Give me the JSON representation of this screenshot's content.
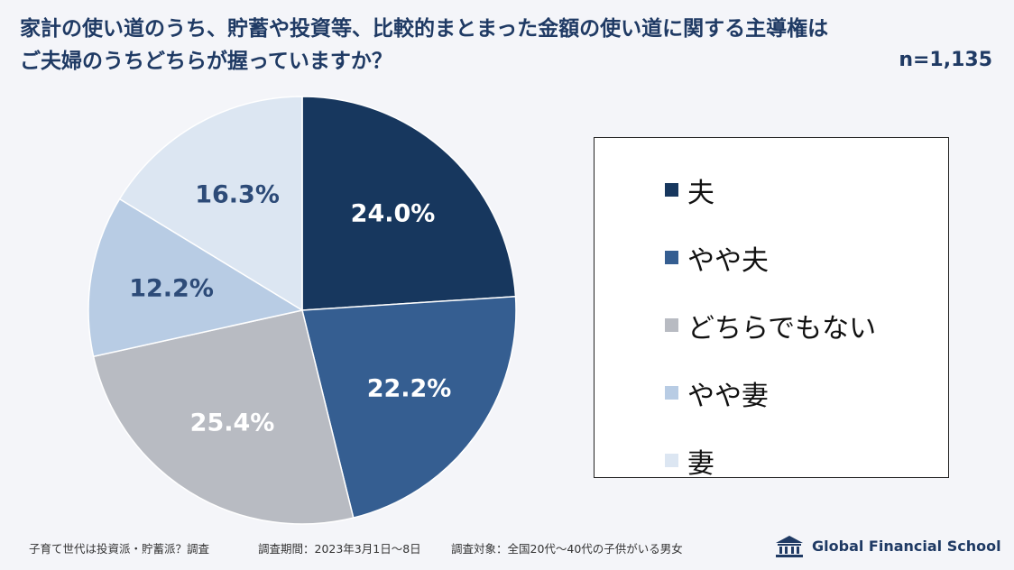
{
  "title": {
    "line1": "家計の使い道のうち、貯蓄や投資等、比較的まとまった金額の使い道に関する主導権は",
    "line2": "ご夫婦のうちどちらが握っていますか？"
  },
  "sample_size": "n=1,135",
  "chart_data": {
    "type": "pie",
    "title": "家計の使い道のうち、貯蓄や投資等、比較的まとまった金額の使い道に関する主導権はご夫婦のうちどちらが握っていますか？",
    "categories": [
      "夫",
      "やや夫",
      "どちらでもない",
      "やや妻",
      "妻"
    ],
    "values": [
      24.0,
      22.2,
      25.4,
      12.2,
      16.3
    ],
    "labels": [
      "24.0%",
      "22.2%",
      "25.4%",
      "12.2%",
      "16.3%"
    ],
    "colors": [
      "#17375e",
      "#355e91",
      "#b8bbc2",
      "#b8cce4",
      "#dce6f2"
    ],
    "label_colors": [
      "#ffffff",
      "#ffffff",
      "#ffffff",
      "#2d4b78",
      "#2d4b78"
    ],
    "legend_position": "right"
  },
  "footer": {
    "survey": "子育て世代は投資派・貯蓄派？調査",
    "period": "調査期間：2023年3月1日〜8日",
    "target": "調査対象：全国20代〜40代の子供がいる男女"
  },
  "brand": {
    "name": "Global Financial School",
    "icon": "school-building-icon"
  }
}
